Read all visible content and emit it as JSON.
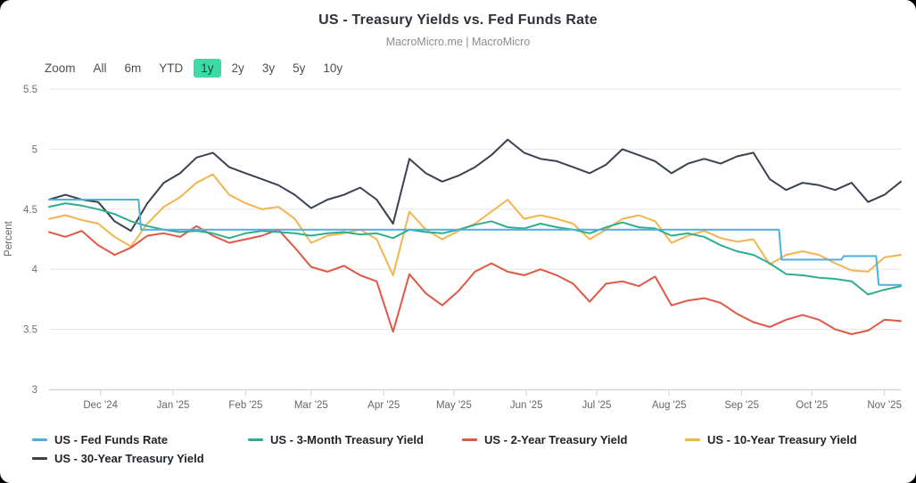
{
  "header": {
    "title": "US - Treasury Yields vs. Fed Funds Rate",
    "subtitle": "MacroMicro.me | MacroMicro"
  },
  "toolbar": {
    "label": "Zoom",
    "options": [
      "All",
      "6m",
      "YTD",
      "1y",
      "2y",
      "3y",
      "5y",
      "10y"
    ],
    "selected": "1y",
    "selected_color": "#3EDAA4"
  },
  "chart_data": {
    "type": "line",
    "title": "US - Treasury Yields vs. Fed Funds Rate",
    "subtitle": "MacroMicro.me | MacroMicro",
    "xlabel": "",
    "ylabel": "Percent",
    "ylim": [
      3,
      5.5
    ],
    "grid": true,
    "legend_position": "bottom-left",
    "colors": {
      "grid": "#e6e6e6",
      "axis_line": "#ccd1dd",
      "tick_text": "#707073"
    },
    "yticks": [
      {
        "v": 5.5,
        "label": "5.5"
      },
      {
        "v": 5.0,
        "label": "5"
      },
      {
        "v": 4.5,
        "label": "4.5"
      },
      {
        "v": 4.0,
        "label": "4"
      },
      {
        "v": 3.5,
        "label": "3.5"
      },
      {
        "v": 3.0,
        "label": "3"
      }
    ],
    "xticks": [
      {
        "f": 0.0604,
        "label": "Dec '24"
      },
      {
        "f": 0.1456,
        "label": "Jan '25"
      },
      {
        "f": 0.2308,
        "label": "Feb '25"
      },
      {
        "f": 0.3077,
        "label": "Mar '25"
      },
      {
        "f": 0.3929,
        "label": "Apr '25"
      },
      {
        "f": 0.4753,
        "label": "May '25"
      },
      {
        "f": 0.5604,
        "label": "Jun '25"
      },
      {
        "f": 0.6429,
        "label": "Jul '25"
      },
      {
        "f": 0.728,
        "label": "Aug '25"
      },
      {
        "f": 0.8132,
        "label": "Sep '25"
      },
      {
        "f": 0.8956,
        "label": "Oct '25"
      },
      {
        "f": 0.9808,
        "label": "Nov '25"
      }
    ],
    "x_note": "x is fraction of the 1y window; series with 'values' are 53 evenly-spaced weekly samples",
    "series": [
      {
        "name": "US - 30-Year Treasury Yield",
        "color": "#3A4150",
        "values": [
          4.58,
          4.62,
          4.58,
          4.56,
          4.4,
          4.32,
          4.55,
          4.72,
          4.8,
          4.93,
          4.97,
          4.85,
          4.8,
          4.75,
          4.7,
          4.62,
          4.51,
          4.58,
          4.62,
          4.68,
          4.58,
          4.38,
          4.92,
          4.8,
          4.73,
          4.78,
          4.85,
          4.95,
          5.08,
          4.97,
          4.92,
          4.9,
          4.85,
          4.8,
          4.87,
          5.0,
          4.95,
          4.9,
          4.8,
          4.88,
          4.92,
          4.88,
          4.94,
          4.97,
          4.75,
          4.66,
          4.72,
          4.7,
          4.66,
          4.72,
          4.56,
          4.62,
          4.73
        ]
      },
      {
        "name": "US - 10-Year Treasury Yield",
        "color": "#F3B44F",
        "values": [
          4.42,
          4.45,
          4.41,
          4.38,
          4.27,
          4.19,
          4.38,
          4.52,
          4.6,
          4.72,
          4.79,
          4.62,
          4.55,
          4.5,
          4.52,
          4.42,
          4.22,
          4.28,
          4.3,
          4.33,
          4.25,
          3.95,
          4.48,
          4.33,
          4.25,
          4.32,
          4.38,
          4.48,
          4.58,
          4.42,
          4.45,
          4.42,
          4.38,
          4.25,
          4.33,
          4.42,
          4.45,
          4.4,
          4.22,
          4.28,
          4.32,
          4.26,
          4.23,
          4.25,
          4.04,
          4.12,
          4.15,
          4.12,
          4.05,
          3.99,
          3.98,
          4.1,
          4.12
        ]
      },
      {
        "name": "US - 2-Year Treasury Yield",
        "color": "#E15745",
        "values": [
          4.31,
          4.27,
          4.32,
          4.2,
          4.12,
          4.18,
          4.28,
          4.3,
          4.27,
          4.36,
          4.28,
          4.22,
          4.25,
          4.28,
          4.33,
          4.18,
          4.02,
          3.98,
          4.03,
          3.95,
          3.9,
          3.48,
          3.96,
          3.8,
          3.7,
          3.82,
          3.98,
          4.05,
          3.98,
          3.95,
          4.0,
          3.95,
          3.88,
          3.73,
          3.88,
          3.9,
          3.86,
          3.94,
          3.7,
          3.74,
          3.76,
          3.72,
          3.63,
          3.56,
          3.52,
          3.58,
          3.62,
          3.58,
          3.5,
          3.46,
          3.49,
          3.58,
          3.57
        ]
      },
      {
        "name": "US - 3-Month Treasury Yield",
        "color": "#2EAE8F",
        "values": [
          4.52,
          4.55,
          4.53,
          4.5,
          4.46,
          4.4,
          4.36,
          4.33,
          4.31,
          4.32,
          4.3,
          4.26,
          4.3,
          4.32,
          4.31,
          4.3,
          4.28,
          4.3,
          4.31,
          4.29,
          4.3,
          4.26,
          4.33,
          4.31,
          4.3,
          4.33,
          4.37,
          4.4,
          4.35,
          4.34,
          4.38,
          4.35,
          4.33,
          4.3,
          4.35,
          4.39,
          4.35,
          4.34,
          4.28,
          4.3,
          4.27,
          4.2,
          4.15,
          4.12,
          4.05,
          3.96,
          3.95,
          3.93,
          3.92,
          3.9,
          3.79,
          3.83,
          3.86
        ]
      },
      {
        "name": "US - Fed Funds Rate",
        "color": "#4FAFDB",
        "step": true,
        "points": [
          [
            0,
            4.58
          ],
          [
            0.105,
            4.58
          ],
          [
            0.108,
            4.33
          ],
          [
            0.857,
            4.33
          ],
          [
            0.86,
            4.08
          ],
          [
            0.93,
            4.08
          ],
          [
            0.933,
            4.11
          ],
          [
            0.971,
            4.11
          ],
          [
            0.974,
            3.87
          ],
          [
            1,
            3.87
          ]
        ]
      }
    ],
    "legend_order": [
      "US - Fed Funds Rate",
      "US - 3-Month Treasury Yield",
      "US - 2-Year Treasury Yield",
      "US - 10-Year Treasury Yield",
      "US - 30-Year Treasury Yield"
    ]
  }
}
